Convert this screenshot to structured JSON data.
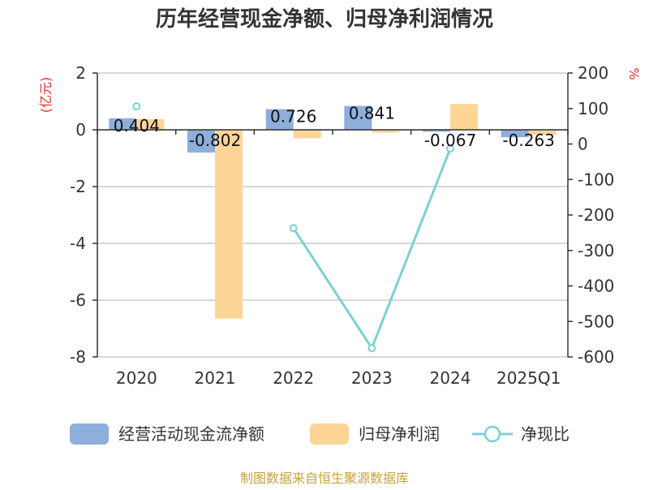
{
  "chart_data": {
    "type": "bar",
    "title": "历年经营现金净额、归母净利润情况",
    "left_unit": "(亿元)",
    "right_unit": "%",
    "categories": [
      "2020",
      "2021",
      "2022",
      "2023",
      "2024",
      "2025Q1"
    ],
    "left_axis": {
      "ylim": [
        -8,
        2
      ],
      "ticks": [
        "2",
        "0",
        "-2",
        "-4",
        "-6",
        "-8"
      ]
    },
    "right_axis": {
      "ylim": [
        -600,
        200
      ],
      "ticks": [
        "200",
        "100",
        "0",
        "-100",
        "-200",
        "-300",
        "-400",
        "-500",
        "-600"
      ]
    },
    "series": [
      {
        "name": "经营活动现金流净额",
        "kind": "bar",
        "axis": "left",
        "color": "#8eaedb",
        "values": [
          0.404,
          -0.802,
          0.726,
          0.841,
          -0.067,
          -0.263
        ],
        "labels": [
          "0.404",
          "-0.802",
          "0.726",
          "0.841",
          "-0.067",
          "-0.263"
        ]
      },
      {
        "name": "归母净利润",
        "kind": "bar",
        "axis": "left",
        "color": "#fdd597",
        "values": [
          0.38,
          -6.65,
          -0.3,
          -0.1,
          0.91,
          -0.18
        ]
      },
      {
        "name": "净现比",
        "kind": "line",
        "axis": "right",
        "color": "#7dd0d5",
        "values": [
          106,
          null,
          -237,
          -575,
          -13,
          null
        ]
      }
    ],
    "grid": true,
    "legend_position": "bottom"
  },
  "source_text": "制图数据来自恒生聚源数据库"
}
